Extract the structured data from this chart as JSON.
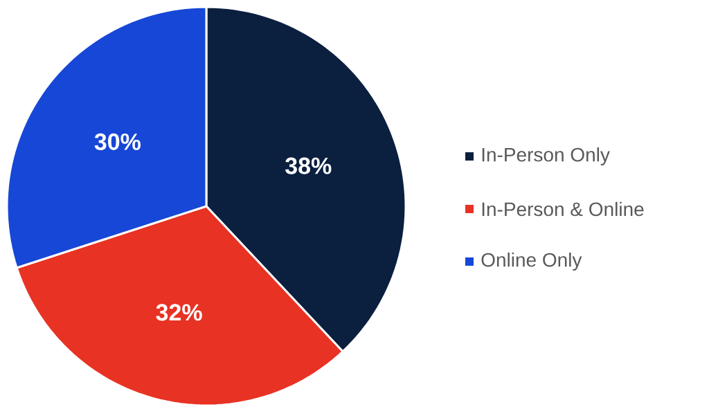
{
  "chart_data": {
    "type": "pie",
    "categories": [
      "In-Person Only",
      "In-Person & Online",
      "Online Only"
    ],
    "values": [
      38,
      32,
      30
    ],
    "value_labels": [
      "38%",
      "32%",
      "30%"
    ],
    "colors": [
      "#0b1f3f",
      "#e83223",
      "#1747d6"
    ],
    "legend": "right"
  }
}
